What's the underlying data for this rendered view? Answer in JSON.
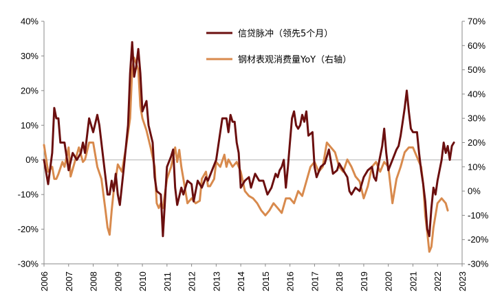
{
  "chart_data": {
    "type": "line",
    "title": "",
    "xlabel": "",
    "ylabel": "",
    "x_axis": {
      "type": "date",
      "range": [
        "2006-01",
        "2023-01"
      ],
      "tick_labels": [
        "2006",
        "2007",
        "2008",
        "2009",
        "2010",
        "2011",
        "2012",
        "2013",
        "2014",
        "2015",
        "2016",
        "2017",
        "2018",
        "2019",
        "2020",
        "2021",
        "2022",
        "2023"
      ]
    },
    "y_left": {
      "min": -30,
      "max": 40,
      "tick_labels": [
        "40%",
        "30%",
        "20%",
        "10%",
        "0%",
        "-10%",
        "-20%",
        "-30%"
      ]
    },
    "y_right": {
      "min": -30,
      "max": 70,
      "tick_labels": [
        "70%",
        "60%",
        "50%",
        "40%",
        "30%",
        "20%",
        "10%",
        "0%",
        "-10%",
        "-20%",
        "-30%"
      ]
    },
    "zero_line": true,
    "grid": false,
    "legend_position": "top-center",
    "series": [
      {
        "name": "信贷脉冲（领先5个月）",
        "axis": "left",
        "color": "#6b0f0f",
        "points": [
          [
            "2006-01",
            0
          ],
          [
            "2006-03",
            -7
          ],
          [
            "2006-05",
            2
          ],
          [
            "2006-06",
            15
          ],
          [
            "2006-07",
            12
          ],
          [
            "2006-08",
            12
          ],
          [
            "2006-09",
            5
          ],
          [
            "2006-11",
            5
          ],
          [
            "2007-01",
            -3
          ],
          [
            "2007-03",
            2
          ],
          [
            "2007-05",
            0
          ],
          [
            "2007-07",
            2
          ],
          [
            "2007-08",
            5
          ],
          [
            "2007-09",
            2
          ],
          [
            "2007-11",
            12
          ],
          [
            "2008-01",
            8
          ],
          [
            "2008-03",
            13
          ],
          [
            "2008-04",
            10
          ],
          [
            "2008-06",
            0
          ],
          [
            "2008-08",
            -10
          ],
          [
            "2008-09",
            -10
          ],
          [
            "2008-10",
            -6
          ],
          [
            "2008-11",
            -9
          ],
          [
            "2008-12",
            -4
          ],
          [
            "2009-01",
            -10
          ],
          [
            "2009-02",
            -13
          ],
          [
            "2009-04",
            -2
          ],
          [
            "2009-06",
            10
          ],
          [
            "2009-07",
            25
          ],
          [
            "2009-08",
            34
          ],
          [
            "2009-09",
            24
          ],
          [
            "2009-10",
            27
          ],
          [
            "2009-11",
            32
          ],
          [
            "2009-12",
            25
          ],
          [
            "2010-01",
            14
          ],
          [
            "2010-03",
            17
          ],
          [
            "2010-04",
            10
          ],
          [
            "2010-06",
            5
          ],
          [
            "2010-07",
            -5
          ],
          [
            "2010-08",
            -9
          ],
          [
            "2010-10",
            -10
          ],
          [
            "2010-11",
            -22
          ],
          [
            "2011-01",
            -2
          ],
          [
            "2011-03",
            1
          ],
          [
            "2011-04",
            3
          ],
          [
            "2011-05",
            -8
          ],
          [
            "2011-06",
            -13
          ],
          [
            "2011-08",
            -8
          ],
          [
            "2011-09",
            -10
          ],
          [
            "2011-11",
            -6
          ],
          [
            "2012-01",
            -7
          ],
          [
            "2012-02",
            -12
          ],
          [
            "2012-04",
            -6
          ],
          [
            "2012-06",
            -8
          ],
          [
            "2012-08",
            -5
          ],
          [
            "2012-09",
            -6
          ],
          [
            "2012-11",
            -3
          ],
          [
            "2013-01",
            0
          ],
          [
            "2013-03",
            8
          ],
          [
            "2013-04",
            12
          ],
          [
            "2013-06",
            12
          ],
          [
            "2013-07",
            8
          ],
          [
            "2013-08",
            13
          ],
          [
            "2013-09",
            11
          ],
          [
            "2013-10",
            11
          ],
          [
            "2013-11",
            5
          ],
          [
            "2013-12",
            2
          ],
          [
            "2014-01",
            -8
          ],
          [
            "2014-03",
            -6
          ],
          [
            "2014-05",
            -5
          ],
          [
            "2014-06",
            -8
          ],
          [
            "2014-08",
            -4
          ],
          [
            "2014-10",
            -6
          ],
          [
            "2014-12",
            -6
          ],
          [
            "2015-02",
            -10
          ],
          [
            "2015-04",
            -8
          ],
          [
            "2015-06",
            -4
          ],
          [
            "2015-07",
            -5
          ],
          [
            "2015-08",
            -3
          ],
          [
            "2015-09",
            -2
          ],
          [
            "2015-10",
            0
          ],
          [
            "2015-11",
            -8
          ],
          [
            "2015-12",
            -2
          ],
          [
            "2016-01",
            5
          ],
          [
            "2016-02",
            12
          ],
          [
            "2016-03",
            14
          ],
          [
            "2016-04",
            10
          ],
          [
            "2016-05",
            9
          ],
          [
            "2016-06",
            10
          ],
          [
            "2016-07",
            13
          ],
          [
            "2016-08",
            11
          ],
          [
            "2016-09",
            14
          ],
          [
            "2016-10",
            7
          ],
          [
            "2016-12",
            8
          ],
          [
            "2017-01",
            -2
          ],
          [
            "2017-02",
            -5
          ],
          [
            "2017-04",
            -2
          ],
          [
            "2017-06",
            -1
          ],
          [
            "2017-08",
            3
          ],
          [
            "2017-10",
            -4
          ],
          [
            "2017-12",
            -3
          ],
          [
            "2018-01",
            -1
          ],
          [
            "2018-03",
            -3
          ],
          [
            "2018-05",
            -5
          ],
          [
            "2018-06",
            -9
          ],
          [
            "2018-07",
            -10
          ],
          [
            "2018-09",
            -8
          ],
          [
            "2018-11",
            -9
          ],
          [
            "2019-01",
            -5
          ],
          [
            "2019-03",
            -3
          ],
          [
            "2019-05",
            -2
          ],
          [
            "2019-06",
            -5
          ],
          [
            "2019-07",
            -6
          ],
          [
            "2019-08",
            -2
          ],
          [
            "2019-10",
            4
          ],
          [
            "2019-11",
            9
          ],
          [
            "2019-12",
            2
          ],
          [
            "2020-01",
            -3
          ],
          [
            "2020-03",
            0
          ],
          [
            "2020-05",
            3
          ],
          [
            "2020-06",
            4
          ],
          [
            "2020-07",
            7
          ],
          [
            "2020-08",
            11
          ],
          [
            "2020-09",
            15
          ],
          [
            "2020-10",
            20
          ],
          [
            "2020-11",
            14
          ],
          [
            "2020-12",
            9
          ],
          [
            "2021-01",
            8
          ],
          [
            "2021-03",
            8
          ],
          [
            "2021-04",
            2
          ],
          [
            "2021-05",
            -3
          ],
          [
            "2021-06",
            -7
          ],
          [
            "2021-07",
            -12
          ],
          [
            "2021-08",
            -20
          ],
          [
            "2021-09",
            -22
          ],
          [
            "2021-10",
            -14
          ],
          [
            "2021-11",
            -8
          ],
          [
            "2021-12",
            -10
          ],
          [
            "2022-01",
            -6
          ],
          [
            "2022-03",
            0
          ],
          [
            "2022-04",
            5
          ],
          [
            "2022-05",
            2
          ],
          [
            "2022-06",
            4
          ],
          [
            "2022-07",
            0
          ],
          [
            "2022-08",
            4
          ],
          [
            "2022-09",
            5
          ]
        ]
      },
      {
        "name": "钢材表观消费量YoY（右轴）",
        "axis": "right",
        "color": "#d88a4d",
        "points": [
          [
            "2006-01",
            19
          ],
          [
            "2006-03",
            8
          ],
          [
            "2006-05",
            10
          ],
          [
            "2006-06",
            5
          ],
          [
            "2006-07",
            5
          ],
          [
            "2006-08",
            7
          ],
          [
            "2006-10",
            12
          ],
          [
            "2006-11",
            10
          ],
          [
            "2007-01",
            18
          ],
          [
            "2007-02",
            6
          ],
          [
            "2007-04",
            12
          ],
          [
            "2007-06",
            18
          ],
          [
            "2007-08",
            12
          ],
          [
            "2007-09",
            13
          ],
          [
            "2007-11",
            20
          ],
          [
            "2008-01",
            20
          ],
          [
            "2008-03",
            10
          ],
          [
            "2008-05",
            5
          ],
          [
            "2008-07",
            -8
          ],
          [
            "2008-08",
            -15
          ],
          [
            "2008-09",
            -18
          ],
          [
            "2008-10",
            -8
          ],
          [
            "2008-11",
            0
          ],
          [
            "2008-12",
            5
          ],
          [
            "2009-01",
            11
          ],
          [
            "2009-03",
            8
          ],
          [
            "2009-05",
            18
          ],
          [
            "2009-07",
            30
          ],
          [
            "2009-08",
            50
          ],
          [
            "2009-09",
            55
          ],
          [
            "2009-11",
            50
          ],
          [
            "2009-12",
            35
          ],
          [
            "2010-01",
            30
          ],
          [
            "2010-03",
            25
          ],
          [
            "2010-05",
            18
          ],
          [
            "2010-07",
            10
          ],
          [
            "2010-08",
            -5
          ],
          [
            "2010-09",
            -7
          ],
          [
            "2010-10",
            -5
          ],
          [
            "2010-11",
            -7
          ],
          [
            "2011-01",
            5
          ],
          [
            "2011-03",
            10
          ],
          [
            "2011-05",
            18
          ],
          [
            "2011-06",
            12
          ],
          [
            "2011-07",
            17
          ],
          [
            "2011-08",
            10
          ],
          [
            "2011-09",
            5
          ],
          [
            "2011-11",
            -5
          ],
          [
            "2012-01",
            -3
          ],
          [
            "2012-03",
            -5
          ],
          [
            "2012-05",
            -4
          ],
          [
            "2012-06",
            5
          ],
          [
            "2012-08",
            8
          ],
          [
            "2012-09",
            2
          ],
          [
            "2012-10",
            2
          ],
          [
            "2012-12",
            5
          ],
          [
            "2013-01",
            12
          ],
          [
            "2013-03",
            10
          ],
          [
            "2013-05",
            15
          ],
          [
            "2013-06",
            10
          ],
          [
            "2013-07",
            13
          ],
          [
            "2013-09",
            10
          ],
          [
            "2013-11",
            12
          ],
          [
            "2014-01",
            8
          ],
          [
            "2014-03",
            0
          ],
          [
            "2014-05",
            -2
          ],
          [
            "2014-07",
            -3
          ],
          [
            "2014-09",
            -5
          ],
          [
            "2014-11",
            -8
          ],
          [
            "2015-01",
            -10
          ],
          [
            "2015-03",
            -8
          ],
          [
            "2015-05",
            -5
          ],
          [
            "2015-07",
            -7
          ],
          [
            "2015-09",
            -9
          ],
          [
            "2015-11",
            -3
          ],
          [
            "2016-01",
            -3
          ],
          [
            "2016-03",
            -5
          ],
          [
            "2016-05",
            0
          ],
          [
            "2016-07",
            -2
          ],
          [
            "2016-09",
            4
          ],
          [
            "2016-11",
            10
          ],
          [
            "2017-01",
            12
          ],
          [
            "2017-03",
            8
          ],
          [
            "2017-05",
            10
          ],
          [
            "2017-07",
            20
          ],
          [
            "2017-09",
            18
          ],
          [
            "2017-11",
            16
          ],
          [
            "2018-01",
            10
          ],
          [
            "2018-03",
            8
          ],
          [
            "2018-05",
            13
          ],
          [
            "2018-07",
            10
          ],
          [
            "2018-09",
            6
          ],
          [
            "2018-11",
            4
          ],
          [
            "2019-01",
            -3
          ],
          [
            "2019-03",
            2
          ],
          [
            "2019-05",
            10
          ],
          [
            "2019-07",
            12
          ],
          [
            "2019-09",
            8
          ],
          [
            "2019-11",
            12
          ],
          [
            "2020-01",
            10
          ],
          [
            "2020-03",
            -5
          ],
          [
            "2020-05",
            5
          ],
          [
            "2020-07",
            10
          ],
          [
            "2020-09",
            16
          ],
          [
            "2020-11",
            18
          ],
          [
            "2021-01",
            18
          ],
          [
            "2021-03",
            14
          ],
          [
            "2021-05",
            10
          ],
          [
            "2021-06",
            3
          ],
          [
            "2021-07",
            -10
          ],
          [
            "2021-08",
            -17
          ],
          [
            "2021-09",
            -25
          ],
          [
            "2021-10",
            -23
          ],
          [
            "2021-11",
            -15
          ],
          [
            "2021-12",
            -10
          ],
          [
            "2022-01",
            -5
          ],
          [
            "2022-03",
            -3
          ],
          [
            "2022-05",
            -5
          ],
          [
            "2022-06",
            -8
          ]
        ]
      }
    ]
  }
}
